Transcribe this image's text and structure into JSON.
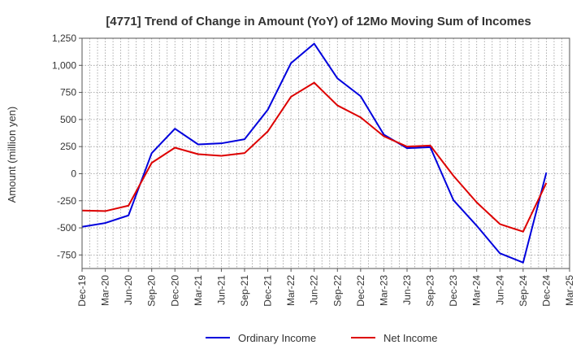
{
  "chart_data": {
    "type": "line",
    "title": "[4771]  Trend of Change in Amount (YoY) of 12Mo Moving Sum of Incomes",
    "xlabel": "",
    "ylabel": "Amount (million yen)",
    "ylim": [
      -875,
      1250
    ],
    "yticks": [
      -750,
      -500,
      -250,
      0,
      250,
      500,
      750,
      1000,
      1250
    ],
    "ytick_labels": [
      "-750",
      "-500",
      "-250",
      "0",
      "250",
      "500",
      "750",
      "1,000",
      "1,250"
    ],
    "categories": [
      "Dec-19",
      "Mar-20",
      "Jun-20",
      "Sep-20",
      "Dec-20",
      "Mar-21",
      "Jun-21",
      "Sep-21",
      "Dec-21",
      "Mar-22",
      "Jun-22",
      "Sep-22",
      "Dec-22",
      "Mar-23",
      "Jun-23",
      "Sep-23",
      "Dec-23",
      "Mar-24",
      "Jun-24",
      "Sep-24",
      "Dec-24",
      "Mar-25"
    ],
    "grid": true,
    "legend_position": "bottom-center",
    "series": [
      {
        "name": "Ordinary Income",
        "color": "#0000dd",
        "values": [
          -490,
          -455,
          -385,
          190,
          415,
          270,
          280,
          318,
          590,
          1020,
          1200,
          880,
          715,
          360,
          235,
          245,
          -245,
          -480,
          -735,
          -820,
          10,
          null
        ]
      },
      {
        "name": "Net Income",
        "color": "#dd0000",
        "values": [
          -340,
          -345,
          -295,
          100,
          240,
          180,
          165,
          190,
          390,
          710,
          840,
          630,
          520,
          345,
          250,
          260,
          -20,
          -265,
          -465,
          -535,
          -85,
          null
        ]
      }
    ]
  }
}
